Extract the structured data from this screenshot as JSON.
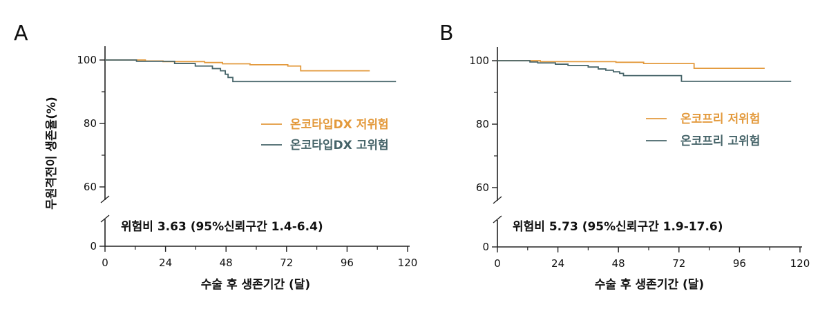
{
  "chart_data": [
    {
      "type": "line",
      "panel_label": "A",
      "xlabel": "수술 후 생존기간 (달)",
      "ylabel": "무원격전이 생존율(%)",
      "xlim": [
        0,
        120
      ],
      "ylim": [
        0,
        100
      ],
      "y_axis_break": [
        0,
        60
      ],
      "xticks": [
        "0",
        "24",
        "48",
        "72",
        "96",
        "120"
      ],
      "yticks": [
        "100",
        "80",
        "60",
        "0"
      ],
      "annotation": "위험비 3.63 (95%신뢰구간 1.4-6.4)",
      "legend_placement": "center-right",
      "grid": false,
      "series": [
        {
          "name": "온코타입DX 저위험",
          "color": "#e39a3d",
          "x": [
            0,
            16,
            23,
            39.5,
            46.6,
            57.5,
            72.5,
            77.6,
            105
          ],
          "y": [
            100,
            99.7,
            99.5,
            99.2,
            98.8,
            98.5,
            98.1,
            96.6,
            96.6
          ]
        },
        {
          "name": "온코타입DX 고위험",
          "color": "#466469",
          "x": [
            0,
            12.5,
            27.6,
            35.8,
            42.6,
            45.8,
            47.7,
            48.8,
            50.7,
            115.4
          ],
          "y": [
            100,
            99.6,
            98.9,
            98.1,
            97.3,
            96.6,
            95.5,
            94.5,
            93.2,
            93.2
          ]
        }
      ]
    },
    {
      "type": "line",
      "panel_label": "B",
      "xlabel": "수술 후 생존기간 (달)",
      "ylabel": "",
      "xlim": [
        0,
        120
      ],
      "ylim": [
        0,
        100
      ],
      "y_axis_break": [
        0,
        60
      ],
      "xticks": [
        "0",
        "24",
        "48",
        "72",
        "96",
        "120"
      ],
      "yticks": [
        "100",
        "80",
        "60",
        "0"
      ],
      "annotation": "위험비 5.73 (95%신뢰구간 1.9-17.6)",
      "legend_placement": "center-right",
      "grid": false,
      "series": [
        {
          "name": "온코프리 저위험",
          "color": "#e39a3d",
          "x": [
            0,
            17,
            47,
            58,
            78,
            106
          ],
          "y": [
            100,
            99.7,
            99.5,
            99.1,
            97.6,
            97.6
          ]
        },
        {
          "name": "온코프리 고위험",
          "color": "#466469",
          "x": [
            0,
            12.9,
            16,
            23,
            28,
            36,
            40,
            43,
            46,
            48.5,
            50,
            73,
            116.5
          ],
          "y": [
            100,
            99.6,
            99.3,
            98.9,
            98.5,
            98,
            97.4,
            97,
            96.5,
            96,
            95.3,
            93.5,
            93.5
          ]
        }
      ]
    }
  ]
}
